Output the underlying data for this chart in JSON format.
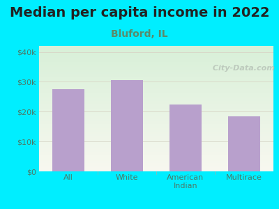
{
  "title": "Median per capita income in 2022",
  "subtitle": "Bluford, IL",
  "categories": [
    "All",
    "White",
    "American\nIndian",
    "Multirace"
  ],
  "values": [
    27500,
    30500,
    22500,
    18500
  ],
  "bar_color": "#b8a0cc",
  "title_fontsize": 14,
  "subtitle_fontsize": 10,
  "subtitle_color": "#5a8a6a",
  "title_color": "#222222",
  "ylim": [
    0,
    42000
  ],
  "yticks": [
    0,
    10000,
    20000,
    30000,
    40000
  ],
  "ytick_labels": [
    "$0",
    "$10k",
    "$20k",
    "$30k",
    "$40k"
  ],
  "outer_bg": "#00eeff",
  "plot_bg_topleft": "#d8f0d8",
  "plot_bg_bottomright": "#f8f8f0",
  "watermark": " City-Data.com",
  "watermark_color": "#b8c4b8",
  "grid_color": "#d8d8c8",
  "tick_color": "#4a7a6a",
  "axis_line_color": "#aaaaaa"
}
